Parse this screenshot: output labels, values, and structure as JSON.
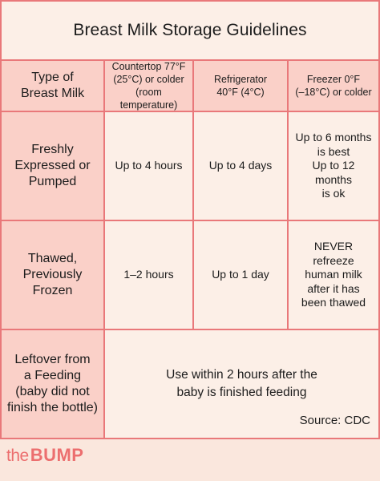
{
  "title": "Breast Milk Storage Guidelines",
  "headers": {
    "type": [
      "Type of",
      "Breast Milk"
    ],
    "countertop": [
      "Countertop 77°F",
      "(25°C) or colder",
      "(room temperature)"
    ],
    "refrigerator": [
      "Refrigerator",
      "40°F (4°C)"
    ],
    "freezer": [
      "Freezer 0°F",
      "(–18°C) or colder"
    ]
  },
  "rows": [
    {
      "type": [
        "Freshly",
        "Expressed or",
        "Pumped"
      ],
      "countertop": [
        "Up to 4 hours"
      ],
      "refrigerator": [
        "Up to 4 days"
      ],
      "freezer": [
        "Up to 6 months",
        "is best",
        "Up to 12 months",
        "is ok"
      ]
    },
    {
      "type": [
        "Thawed,",
        "Previously Frozen"
      ],
      "countertop": [
        "1–2 hours"
      ],
      "refrigerator": [
        "Up to 1 day"
      ],
      "freezer": [
        "NEVER refreeze",
        "human milk",
        "after it has",
        "been thawed"
      ]
    }
  ],
  "leftover": {
    "type": [
      "Leftover from",
      "a Feeding",
      "(baby did not",
      "finish the bottle)"
    ],
    "note": [
      "Use within 2 hours after the",
      "baby is finished feeding"
    ]
  },
  "source": "Source: CDC",
  "brand": {
    "the": "the",
    "bump": "BUMP",
    "color": "#ec6f6f"
  }
}
